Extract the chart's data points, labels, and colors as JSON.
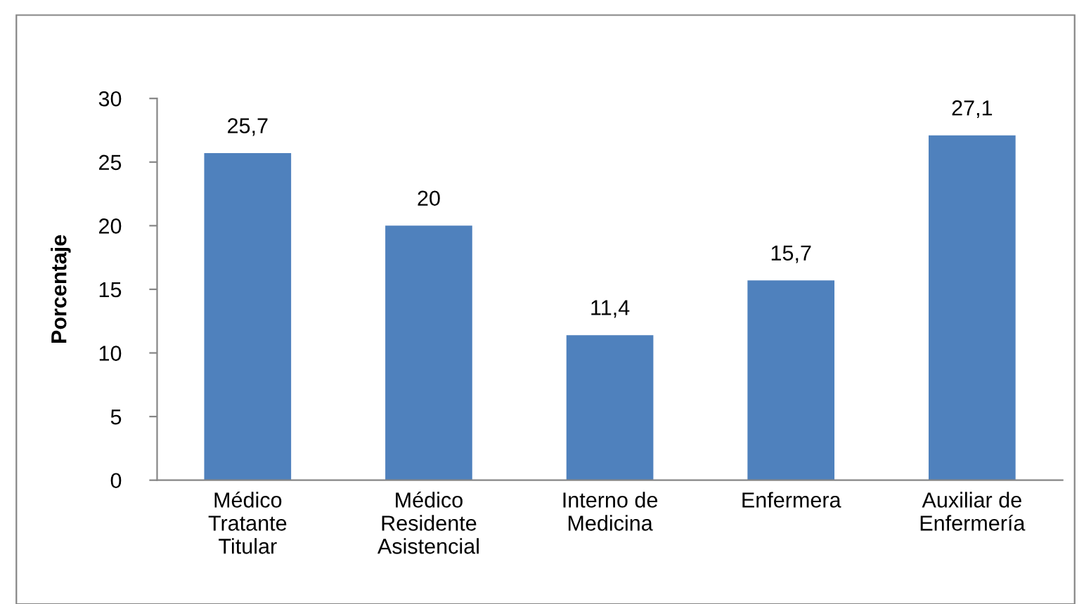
{
  "chart_data": {
    "type": "bar",
    "ylabel": "Porcentaje",
    "categories": [
      "Médico\nTratante\nTitular",
      "Médico\nResidente\nAsistencial",
      "Interno de\nMedicina",
      "Enfermera",
      "Auxiliar de\nEnfermería"
    ],
    "values": [
      25.7,
      20,
      11.4,
      15.7,
      27.1
    ],
    "value_labels": [
      "25,7",
      "20",
      "11,4",
      "15,7",
      "27,1"
    ],
    "color": "#4f81bd",
    "ylim": [
      0,
      30
    ],
    "yticks": [
      0,
      5,
      10,
      15,
      20,
      25,
      30
    ],
    "grid": false,
    "legend": false
  }
}
